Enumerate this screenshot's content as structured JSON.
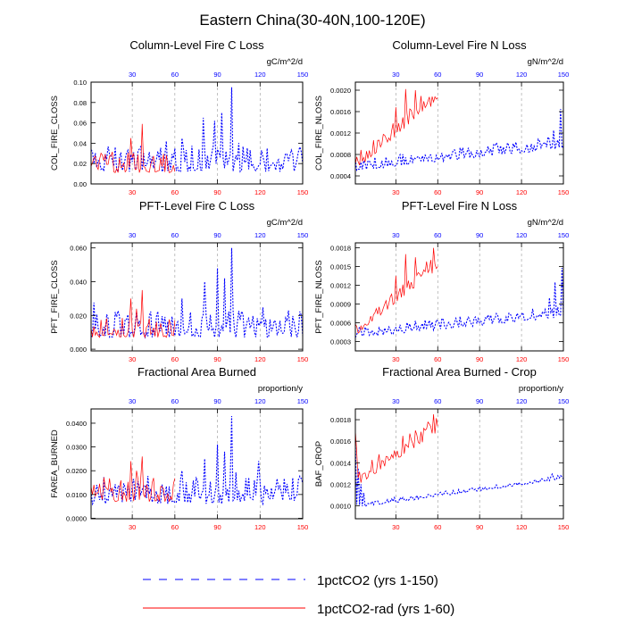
{
  "figure_title": "Eastern China(30-40N,100-120E)",
  "colors": {
    "series_a": "#0000ff",
    "series_b": "#ff0000",
    "top_ticks": "#0000ff",
    "bottom_ticks": "#ff0000",
    "axis": "#000000",
    "grid": "#999999"
  },
  "legend": {
    "entries": [
      {
        "label": "1pctCO2 (yrs 1-150)",
        "color": "#0000ff",
        "style": "dashed"
      },
      {
        "label": "1pctCO2-rad (yrs 1-60)",
        "color": "#ff0000",
        "style": "solid"
      }
    ]
  },
  "chart_data": [
    {
      "type": "line",
      "title": "Column-Level Fire C Loss",
      "ylabel": "COL_FIRE_CLOSS",
      "units": "gC/m^2/d",
      "xlim": [
        1,
        150
      ],
      "ylim": [
        0,
        0.1
      ],
      "yticks": [
        "0.00",
        "0.02",
        "0.04",
        "0.06",
        "0.08",
        "0.10"
      ],
      "ytick_values": [
        0,
        0.02,
        0.04,
        0.06,
        0.08,
        0.1
      ],
      "xticks_top": [
        30,
        60,
        90,
        120,
        150
      ],
      "xticks_bottom": [
        30,
        60,
        90,
        120,
        150
      ],
      "grid": "vertical dashed at x ticks",
      "series": [
        {
          "name": "1pctCO2 (yrs 1-150)",
          "line_style": "dashed",
          "color": "#0000ff",
          "base": 0.012,
          "amp": 0.026,
          "trend": 0,
          "spikes": [
            [
              80,
              0.065
            ],
            [
              100,
              0.095
            ],
            [
              93,
              0.07
            ],
            [
              88,
              0.062
            ],
            [
              65,
              0.045
            ]
          ],
          "n": 150,
          "start": 1,
          "min": 0.002
        },
        {
          "name": "1pctCO2-rad (yrs 1-60)",
          "line_style": "solid",
          "color": "#ff0000",
          "base": 0.011,
          "amp": 0.02,
          "trend": 0,
          "spikes": [
            [
              29,
              0.045
            ],
            [
              37,
              0.059
            ],
            [
              31,
              0.03
            ]
          ],
          "n": 60,
          "start": 1,
          "min": 0.002
        }
      ]
    },
    {
      "type": "line",
      "title": "Column-Level Fire N Loss",
      "ylabel": "COL_FIRE_NLOSS",
      "units": "gN/m^2/d",
      "xlim": [
        1,
        150
      ],
      "ylim": [
        0.00025,
        0.00215
      ],
      "yticks": [
        "0.0004",
        "0.0008",
        "0.0012",
        "0.0016",
        "0.0020"
      ],
      "ytick_values": [
        0.0004,
        0.0008,
        0.0012,
        0.0016,
        0.002
      ],
      "xticks_top": [
        30,
        60,
        90,
        120,
        150
      ],
      "xticks_bottom": [
        30,
        60,
        90,
        120,
        150
      ],
      "grid": "vertical dashed at x ticks",
      "series": [
        {
          "name": "1pctCO2 (yrs 1-150)",
          "line_style": "dashed",
          "color": "#0000ff",
          "base": 0.0005,
          "amp": 0.00022,
          "trend": 2.8e-06,
          "spikes": [
            [
              148,
              0.00165
            ],
            [
              143,
              0.00125
            ],
            [
              135,
              0.001
            ]
          ],
          "n": 150,
          "start": 1,
          "min": 0.00031
        },
        {
          "name": "1pctCO2-rad (yrs 1-60)",
          "line_style": "solid",
          "color": "#ff0000",
          "base": 0.0005,
          "amp": 0.0003,
          "trend": 2.2e-05,
          "spikes": [
            [
              37,
              0.00202
            ],
            [
              44,
              0.002
            ],
            [
              30,
              0.00168
            ],
            [
              52,
              0.00172
            ],
            [
              57,
              0.00178
            ],
            [
              40,
              0.00165
            ]
          ],
          "n": 60,
          "start": 1,
          "min": 0.00031
        }
      ]
    },
    {
      "type": "line",
      "title": "PFT-Level Fire C Loss",
      "ylabel": "PFT_FIRE_CLOSS",
      "units": "gC/m^2/d",
      "xlim": [
        1,
        150
      ],
      "ylim": [
        -0.001,
        0.063
      ],
      "yticks": [
        "0.000",
        "0.020",
        "0.040",
        "0.060"
      ],
      "ytick_values": [
        0,
        0.02,
        0.04,
        0.06
      ],
      "xticks_top": [
        30,
        60,
        90,
        120,
        150
      ],
      "xticks_bottom": [
        30,
        60,
        90,
        120,
        150
      ],
      "grid": "vertical dashed at x ticks",
      "series": [
        {
          "name": "1pctCO2 (yrs 1-150)",
          "line_style": "dashed",
          "color": "#0000ff",
          "base": 0.007,
          "amp": 0.016,
          "trend": 0,
          "spikes": [
            [
              100,
              0.06
            ],
            [
              90,
              0.048
            ],
            [
              81,
              0.04
            ],
            [
              95,
              0.042
            ],
            [
              65,
              0.03
            ]
          ],
          "n": 150,
          "start": 1,
          "min": 0.001
        },
        {
          "name": "1pctCO2-rad (yrs 1-60)",
          "line_style": "solid",
          "color": "#ff0000",
          "base": 0.007,
          "amp": 0.012,
          "trend": 0,
          "spikes": [
            [
              37,
              0.035
            ],
            [
              29,
              0.03
            ],
            [
              33,
              0.024
            ]
          ],
          "n": 60,
          "start": 1,
          "min": 0.001
        }
      ]
    },
    {
      "type": "line",
      "title": "PFT-Level Fire N Loss",
      "ylabel": "PFT_FIRE_NLOSS",
      "units": "gN/m^2/d",
      "xlim": [
        1,
        150
      ],
      "ylim": [
        0.00015,
        0.00188
      ],
      "yticks": [
        "0.0003",
        "0.0006",
        "0.0009",
        "0.0012",
        "0.0015",
        "0.0018"
      ],
      "ytick_values": [
        0.0003,
        0.0006,
        0.0009,
        0.0012,
        0.0015,
        0.0018
      ],
      "xticks_top": [
        30,
        60,
        90,
        120,
        150
      ],
      "xticks_bottom": [
        30,
        60,
        90,
        120,
        150
      ],
      "grid": "vertical dashed at x ticks",
      "series": [
        {
          "name": "1pctCO2 (yrs 1-150)",
          "line_style": "dashed",
          "color": "#0000ff",
          "base": 0.00036,
          "amp": 0.00018,
          "trend": 2.2e-06,
          "spikes": [
            [
              149,
              0.00148
            ],
            [
              144,
              0.00125
            ],
            [
              140,
              0.001
            ]
          ],
          "n": 150,
          "start": 1,
          "min": 0.00022
        },
        {
          "name": "1pctCO2-rad (yrs 1-60)",
          "line_style": "solid",
          "color": "#ff0000",
          "base": 0.0004,
          "amp": 0.00025,
          "trend": 1.8e-05,
          "spikes": [
            [
              57,
              0.0018
            ],
            [
              37,
              0.0017
            ],
            [
              44,
              0.00165
            ],
            [
              52,
              0.00158
            ],
            [
              30,
              0.00135
            ]
          ],
          "n": 60,
          "start": 1,
          "min": 0.00022
        }
      ]
    },
    {
      "type": "line",
      "title": "Fractional Area Burned",
      "ylabel": "FAREA_BURNED",
      "units": "proportion/y",
      "xlim": [
        1,
        150
      ],
      "ylim": [
        -0.0002,
        0.046
      ],
      "yticks": [
        "0.0000",
        "0.0100",
        "0.0200",
        "0.0300",
        "0.0400"
      ],
      "ytick_values": [
        0,
        0.01,
        0.02,
        0.03,
        0.04
      ],
      "xticks_top": [
        30,
        60,
        90,
        120,
        150
      ],
      "xticks_bottom": [
        30,
        60,
        90,
        120,
        150
      ],
      "grid": "vertical dashed at x ticks",
      "series": [
        {
          "name": "1pctCO2 (yrs 1-150)",
          "line_style": "dashed",
          "color": "#0000ff",
          "base": 0.006,
          "amp": 0.012,
          "trend": 0,
          "spikes": [
            [
              100,
              0.043
            ],
            [
              90,
              0.031
            ],
            [
              81,
              0.025
            ],
            [
              95,
              0.028
            ],
            [
              65,
              0.02
            ]
          ],
          "n": 150,
          "start": 1,
          "min": 0.002
        },
        {
          "name": "1pctCO2-rad (yrs 1-60)",
          "line_style": "solid",
          "color": "#ff0000",
          "base": 0.007,
          "amp": 0.01,
          "trend": 0,
          "spikes": [
            [
              29,
              0.024
            ],
            [
              37,
              0.026
            ],
            [
              33,
              0.02
            ]
          ],
          "n": 60,
          "start": 1,
          "min": 0.002
        }
      ]
    },
    {
      "type": "line",
      "title": "Fractional Area Burned - Crop",
      "ylabel": "BAF_CROP",
      "units": "proportion/y",
      "xlim": [
        1,
        150
      ],
      "ylim": [
        0.00088,
        0.0019
      ],
      "yticks": [
        "0.0010",
        "0.0012",
        "0.0014",
        "0.0016",
        "0.0018"
      ],
      "ytick_values": [
        0.001,
        0.0012,
        0.0014,
        0.0016,
        0.0018
      ],
      "xticks_top": [
        30,
        60,
        90,
        120,
        150
      ],
      "xticks_bottom": [
        30,
        60,
        90,
        120,
        150
      ],
      "grid": "vertical dashed at x ticks",
      "series": [
        {
          "name": "1pctCO2 (yrs 1-150)",
          "line_style": "dashed",
          "color": "#0000ff",
          "base": 0.00098,
          "amp": 4e-05,
          "trend": 1.8e-06,
          "spikes": [
            [
              1,
              0.0016
            ],
            [
              3,
              0.00135
            ],
            [
              5,
              0.0012
            ],
            [
              7,
              0.00112
            ]
          ],
          "n": 150,
          "start": 1,
          "min": 0.00092
        },
        {
          "name": "1pctCO2-rad (yrs 1-60)",
          "line_style": "solid",
          "color": "#ff0000",
          "base": 0.00118,
          "amp": 0.00016,
          "trend": 8.5e-06,
          "spikes": [
            [
              1,
              0.0017
            ],
            [
              2,
              0.0015
            ],
            [
              57,
              0.00185
            ],
            [
              50,
              0.00172
            ],
            [
              44,
              0.0017
            ],
            [
              35,
              0.00165
            ]
          ],
          "n": 60,
          "start": 1,
          "min": 0.001
        }
      ]
    }
  ]
}
